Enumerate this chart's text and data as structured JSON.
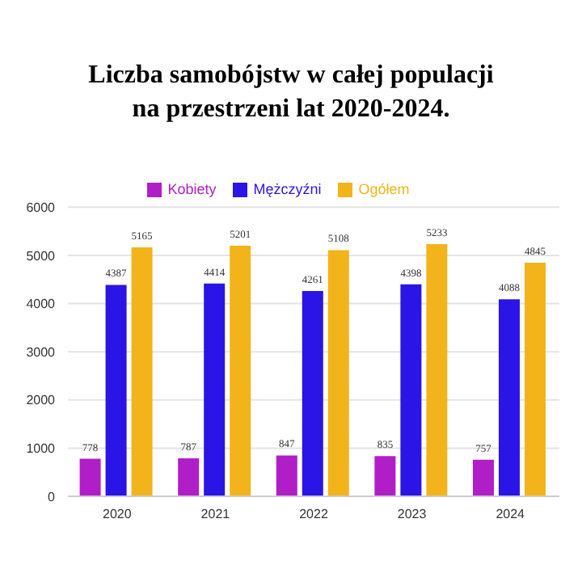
{
  "chart_data": {
    "type": "bar",
    "title": "Liczba samobójstw w całej populacji\nna przestrzeni lat 2020-2024.",
    "categories": [
      "2020",
      "2021",
      "2022",
      "2023",
      "2024"
    ],
    "series": [
      {
        "name": "Kobiety",
        "color": "#b01ec8",
        "values": [
          778,
          787,
          847,
          835,
          757
        ]
      },
      {
        "name": "Mężczyźni",
        "color": "#2b14e6",
        "values": [
          4387,
          4414,
          4261,
          4398,
          4088
        ]
      },
      {
        "name": "Ogółem",
        "color": "#f2b41a",
        "values": [
          5165,
          5201,
          5108,
          5233,
          4845
        ]
      }
    ],
    "ylim": [
      0,
      6000
    ],
    "yticks": [
      0,
      1000,
      2000,
      3000,
      4000,
      5000,
      6000
    ],
    "grid": "y",
    "legend": "top",
    "data_labels": true
  }
}
